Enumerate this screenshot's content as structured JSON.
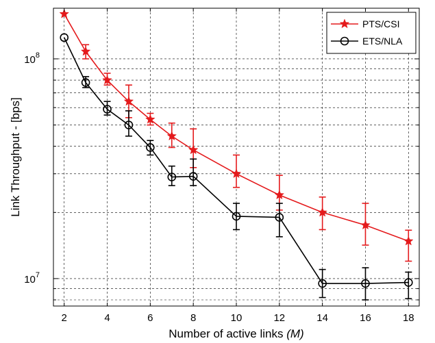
{
  "chart_data": {
    "type": "line",
    "title": "",
    "xlabel": "Number of active links",
    "xlabel_var": "(M)",
    "ylabel": "Link Throughput - [bps]",
    "x": [
      2,
      3,
      4,
      5,
      6,
      7,
      8,
      10,
      12,
      14,
      16,
      18
    ],
    "xticks": [
      "2",
      "4",
      "6",
      "8",
      "10",
      "12",
      "14",
      "16",
      "18"
    ],
    "yticks": [
      {
        "base": "10",
        "exp": "7"
      },
      {
        "base": "10",
        "exp": "8"
      }
    ],
    "xlim": [
      1.5,
      18.5
    ],
    "ylim": [
      7500000,
      170000000
    ],
    "yscale": "log",
    "grid": true,
    "legend_position": "top-right",
    "series": [
      {
        "name": "PTS/CSI",
        "color": "#e41a1c",
        "marker": "star",
        "values": [
          160000000,
          108000000,
          80000000,
          64000000,
          53000000,
          44500000,
          38500000,
          30000000,
          24000000,
          20000000,
          17500000,
          14800000
        ],
        "err_low": [
          0,
          100000000,
          76000000,
          54000000,
          50000000,
          39500000,
          32000000,
          26000000,
          20500000,
          16700000,
          14200000,
          12000000
        ],
        "err_high": [
          0,
          116000000,
          86000000,
          76000000,
          56500000,
          51000000,
          48000000,
          36500000,
          29500000,
          23500000,
          22000000,
          16600000
        ]
      },
      {
        "name": "ETS/NLA",
        "color": "#000000",
        "marker": "circle",
        "values": [
          125000000,
          78000000,
          59000000,
          50000000,
          39500000,
          29000000,
          29200000,
          19200000,
          19000000,
          9500000,
          9500000,
          9600000
        ],
        "err_low": [
          0,
          74000000,
          55500000,
          44500000,
          36500000,
          26500000,
          26500000,
          16700000,
          15500000,
          8200000,
          8000000,
          8100000
        ],
        "err_high": [
          0,
          83000000,
          64000000,
          58000000,
          42500000,
          32500000,
          35000000,
          22000000,
          22000000,
          11000000,
          11200000,
          10700000
        ]
      }
    ]
  }
}
